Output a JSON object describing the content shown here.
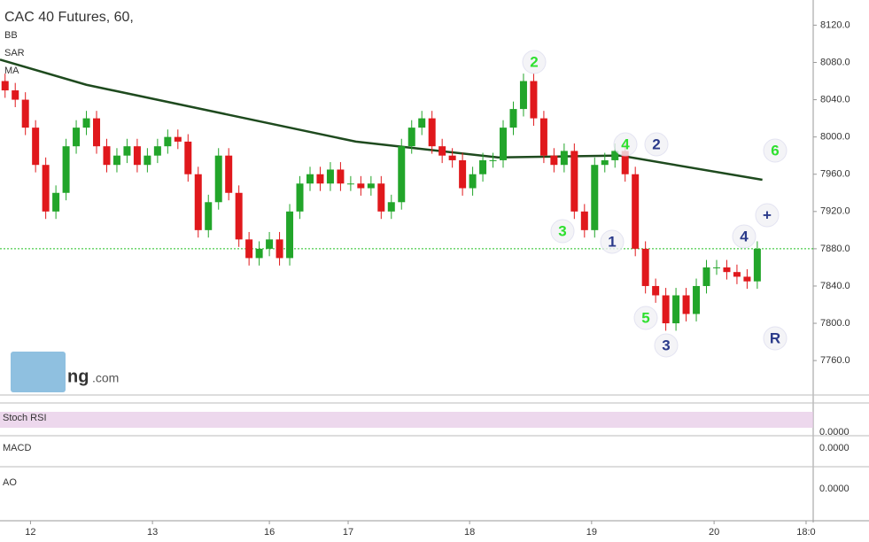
{
  "chart_data": {
    "type": "candlestick",
    "title": "CAC 40 Futures, 60,",
    "indicators": [
      "BB",
      "SAR",
      "MA"
    ],
    "x": [
      1,
      3,
      5,
      7,
      9,
      11,
      13,
      15,
      17,
      19,
      21,
      23,
      25,
      27,
      29,
      31,
      33,
      35,
      37,
      39,
      41,
      43,
      45,
      47,
      49,
      51,
      53,
      55,
      57,
      59,
      61,
      63,
      65,
      67,
      69,
      71,
      73,
      75,
      77,
      79,
      81,
      83,
      85,
      87,
      89,
      91,
      93,
      95,
      97,
      99,
      101,
      103,
      105,
      107,
      109,
      111,
      113,
      115,
      117,
      119,
      121,
      123,
      125,
      127,
      129,
      131,
      133,
      135,
      137,
      139,
      141,
      143,
      145,
      147,
      149
    ],
    "open": [
      8060,
      8050,
      8040,
      8010,
      7970,
      7920,
      7940,
      7990,
      8010,
      8020,
      7990,
      7970,
      7980,
      7990,
      7970,
      7980,
      7990,
      8000,
      7995,
      7960,
      7900,
      7930,
      7980,
      7940,
      7890,
      7870,
      7880,
      7890,
      7870,
      7920,
      7950,
      7960,
      7950,
      7965,
      7950,
      7950,
      7945,
      7950,
      7920,
      7930,
      7990,
      8010,
      8020,
      7990,
      7980,
      7975,
      7945,
      7960,
      7975,
      7975,
      8010,
      8030,
      8060,
      8020,
      7980,
      7970,
      7985,
      7920,
      7900,
      7970,
      7975,
      7985,
      7960,
      7880,
      7840,
      7830,
      7800,
      7830,
      7810,
      7840,
      7860,
      7860,
      7855,
      7850,
      7845
    ],
    "high": [
      8068,
      8058,
      8048,
      8018,
      7978,
      7948,
      7998,
      8018,
      8028,
      8028,
      7998,
      7988,
      7998,
      7998,
      7988,
      7998,
      8008,
      8008,
      8003,
      7968,
      7938,
      7988,
      7988,
      7948,
      7898,
      7888,
      7898,
      7898,
      7928,
      7958,
      7968,
      7968,
      7973,
      7973,
      7958,
      7958,
      7958,
      7958,
      7938,
      7998,
      8018,
      8028,
      8028,
      7998,
      7988,
      7983,
      7968,
      7983,
      7983,
      8018,
      8038,
      8068,
      8068,
      8028,
      7988,
      7993,
      7993,
      7928,
      7978,
      7983,
      7993,
      7993,
      7968,
      7888,
      7848,
      7838,
      7838,
      7838,
      7848,
      7868,
      7868,
      7868,
      7863,
      7858,
      7888
    ],
    "low": [
      8042,
      8032,
      8002,
      7962,
      7912,
      7912,
      7932,
      7982,
      8002,
      7982,
      7962,
      7962,
      7972,
      7962,
      7962,
      7972,
      7982,
      7987,
      7952,
      7892,
      7892,
      7922,
      7932,
      7882,
      7862,
      7862,
      7872,
      7862,
      7862,
      7912,
      7942,
      7942,
      7942,
      7942,
      7942,
      7937,
      7937,
      7912,
      7912,
      7922,
      7982,
      8002,
      7982,
      7972,
      7967,
      7937,
      7937,
      7952,
      7967,
      7967,
      8002,
      8022,
      8012,
      7972,
      7962,
      7962,
      7912,
      7892,
      7892,
      7962,
      7967,
      7952,
      7872,
      7832,
      7822,
      7792,
      7792,
      7802,
      7802,
      7832,
      7852,
      7847,
      7842,
      7837,
      7837
    ],
    "close": [
      8050,
      8040,
      8010,
      7970,
      7920,
      7940,
      7990,
      8010,
      8020,
      7990,
      7970,
      7980,
      7990,
      7970,
      7980,
      7990,
      8000,
      7995,
      7960,
      7900,
      7930,
      7980,
      7940,
      7890,
      7870,
      7880,
      7890,
      7870,
      7920,
      7950,
      7960,
      7950,
      7965,
      7950,
      7950,
      7945,
      7950,
      7920,
      7930,
      7990,
      8010,
      8020,
      7990,
      7980,
      7975,
      7945,
      7960,
      7975,
      7975,
      8010,
      8030,
      8060,
      8020,
      7980,
      7970,
      7985,
      7920,
      7900,
      7970,
      7975,
      7985,
      7960,
      7880,
      7840,
      7830,
      7800,
      7830,
      7810,
      7840,
      7860,
      7860,
      7855,
      7850,
      7845,
      7880
    ],
    "up_color": "#22a52a",
    "down_color": "#e0181c",
    "ma": {
      "x": [
        0,
        17,
        70,
        98,
        122,
        150
      ],
      "values": [
        8083,
        8056,
        7995,
        7978,
        7980,
        7954
      ],
      "color": "#1e4a1e"
    },
    "last_price": 7880,
    "last_price_color": "#22c022",
    "xlim": [
      0,
      160
    ],
    "ylim": [
      7724,
      8147
    ],
    "yticks": [
      {
        "value": 8120,
        "label": "8120.0"
      },
      {
        "value": 8080,
        "label": "8080.0"
      },
      {
        "value": 8040,
        "label": "8040.0"
      },
      {
        "value": 8000,
        "label": "8000.0"
      },
      {
        "value": 7960,
        "label": "7960.0"
      },
      {
        "value": 7920,
        "label": "7920.0"
      },
      {
        "value": 7880,
        "label": "7880.0"
      },
      {
        "value": 7840,
        "label": "7840.0"
      },
      {
        "value": 7800,
        "label": "7800.0"
      },
      {
        "value": 7760,
        "label": "7760.0"
      }
    ],
    "xticks": [
      {
        "value": 6,
        "label": "12"
      },
      {
        "value": 30,
        "label": "13"
      },
      {
        "value": 53,
        "label": "16"
      },
      {
        "value": 68.5,
        "label": "17"
      },
      {
        "value": 92.4,
        "label": "18"
      },
      {
        "value": 116.4,
        "label": "19"
      },
      {
        "value": 140.5,
        "label": "20"
      },
      {
        "value": 158.6,
        "label": "18:0"
      }
    ],
    "annotations": [
      "2",
      "4",
      "2",
      "3",
      "1",
      "5",
      "3",
      "4",
      "6",
      "+",
      "R"
    ]
  },
  "indicator_panes": [
    {
      "title": "Stoch RSI",
      "tick": "0.0000"
    },
    {
      "title": "MACD",
      "tick": "0.0000"
    },
    {
      "title": "AO",
      "tick": "0.0000"
    }
  ],
  "watermark": {
    "main": "ng",
    "suffix": ".com"
  }
}
